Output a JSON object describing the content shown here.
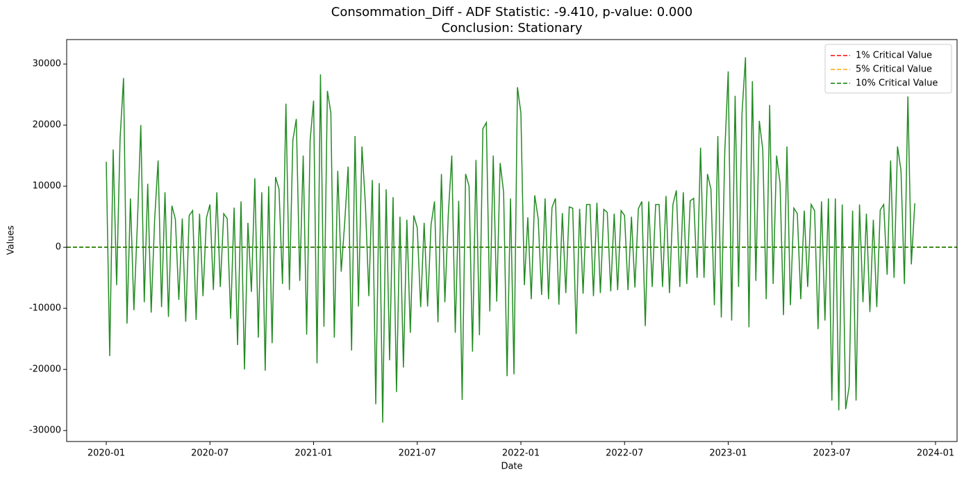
{
  "chart_data": {
    "type": "line",
    "title": "Consommation_Diff - ADF Statistic: -9.410, p-value: 0.000",
    "subtitle": "Conclusion: Stationary",
    "x_label": "Date",
    "y_label": "Values",
    "ylim": [
      -31800,
      34000
    ],
    "yticks": [
      -30000,
      -20000,
      -10000,
      0,
      10000,
      20000,
      30000
    ],
    "xticks": [
      "2020-01",
      "2020-07",
      "2021-01",
      "2021-07",
      "2022-01",
      "2022-07",
      "2023-01",
      "2023-07",
      "2024-01"
    ],
    "legend": "upper right",
    "x": [
      "2020-01",
      "2020-02",
      "2020-03",
      "2020-04",
      "2020-05",
      "2020-06",
      "2020-07",
      "2020-08",
      "2020-09",
      "2020-10",
      "2020-11",
      "2020-12",
      "2021-01",
      "2021-02",
      "2021-03",
      "2021-04",
      "2021-05",
      "2021-06",
      "2021-07",
      "2021-08",
      "2021-09",
      "2021-10",
      "2021-11",
      "2021-12",
      "2022-01",
      "2022-02",
      "2022-03",
      "2022-04",
      "2022-05",
      "2022-06",
      "2022-07",
      "2022-08",
      "2022-09",
      "2022-10",
      "2022-11",
      "2022-12",
      "2023-01",
      "2023-02",
      "2023-03",
      "2023-04",
      "2023-05",
      "2023-06",
      "2023-07",
      "2023-08",
      "2023-09",
      "2023-10",
      "2023-11"
    ],
    "series": [
      {
        "color": "#228b22",
        "values": [
          [
            14000,
            -17800,
            16000,
            -6200,
            17800
          ],
          [
            27700,
            -12500,
            8000,
            -10300,
            3800
          ],
          [
            20000,
            -9000,
            10400,
            -10700,
            4500
          ],
          [
            14200,
            -9800,
            9000,
            -11400,
            6800
          ],
          [
            4600,
            -8600,
            4700,
            -12200,
            5200
          ],
          [
            6000,
            -11900,
            5500,
            -8000,
            4800
          ],
          [
            7000,
            -7000,
            9000,
            -6500,
            5500
          ],
          [
            4700,
            -11700,
            6500,
            -16000,
            7500
          ],
          [
            -20000,
            4000,
            -7300,
            11300,
            -14800
          ],
          [
            9000,
            -20200,
            10000,
            -15700,
            11500
          ],
          [
            9500,
            -6000,
            23500,
            -7000,
            17500
          ],
          [
            21000,
            -5500,
            15000,
            -14300,
            17500
          ],
          [
            24000,
            -19000,
            28300,
            -13000,
            25600
          ],
          [
            22000,
            -14800,
            12500,
            -4000,
            4000
          ],
          [
            13200,
            -16900,
            18200,
            -9700,
            16500
          ],
          [
            7000,
            -8000,
            11000,
            -25700,
            10500
          ],
          [
            -28700,
            9500,
            -18500,
            8200,
            -23700
          ],
          [
            5000,
            -19700,
            4500,
            -14000,
            5200
          ],
          [
            3200,
            -9800,
            4000,
            -9700,
            3700
          ],
          [
            7500,
            -12300,
            12000,
            -9000,
            5500
          ],
          [
            15000,
            -14000,
            7600,
            -25000,
            12000
          ],
          [
            10000,
            -17100,
            14300,
            -14400,
            19400
          ],
          [
            20400,
            -10500,
            15000,
            -8900,
            13800
          ],
          [
            9000,
            -21100,
            8000,
            -20800,
            26200
          ],
          [
            22000,
            -6200,
            4900,
            -8500,
            8500
          ],
          [
            4700,
            -7800,
            8000,
            -8500,
            6500
          ],
          [
            8000,
            -9400,
            5600,
            -7500,
            6600
          ],
          [
            6400,
            -14200,
            6300,
            -7600,
            7000
          ],
          [
            7000,
            -8000,
            7300,
            -7500,
            6200
          ],
          [
            5700,
            -7200,
            5500,
            -7000,
            6000
          ],
          [
            5200,
            -7000,
            5000,
            -6600,
            6300
          ],
          [
            7500,
            -12900,
            7500,
            -6500,
            7000
          ],
          [
            7000,
            -6500,
            8400,
            -7500,
            7000
          ],
          [
            9300,
            -6500,
            9000,
            -6000,
            7600
          ],
          [
            8000,
            -5000,
            16300,
            -5000,
            12000
          ],
          [
            9500,
            -9500,
            18200,
            -11500,
            15500
          ],
          [
            28800,
            -12000,
            24800,
            -6500,
            22000
          ],
          [
            31100,
            -13100,
            27200,
            -5500,
            20700
          ],
          [
            16000,
            -8500,
            23300,
            -6000,
            15000
          ],
          [
            10500,
            -11100,
            16500,
            -9500,
            6400
          ],
          [
            5500,
            -8500,
            6000,
            -6500,
            7000
          ],
          [
            6000,
            -13400,
            7500,
            -12000,
            8000
          ],
          [
            -25100,
            8000,
            -26700,
            7000,
            -26500
          ],
          [
            -22800,
            6000,
            -25100,
            7000,
            -9000
          ],
          [
            5500,
            -10600,
            4500,
            -9800,
            6100
          ],
          [
            7000,
            -4500,
            14200,
            -5000,
            16500
          ],
          [
            12600,
            -6000,
            24700,
            -2800,
            7200
          ]
        ]
      }
    ],
    "reference_lines": [
      {
        "name": "1% Critical Value",
        "color": "red",
        "value": 0
      },
      {
        "name": "5% Critical Value",
        "color": "orange",
        "value": 0
      },
      {
        "name": "10% Critical Value",
        "color": "green",
        "value": 0
      }
    ]
  }
}
